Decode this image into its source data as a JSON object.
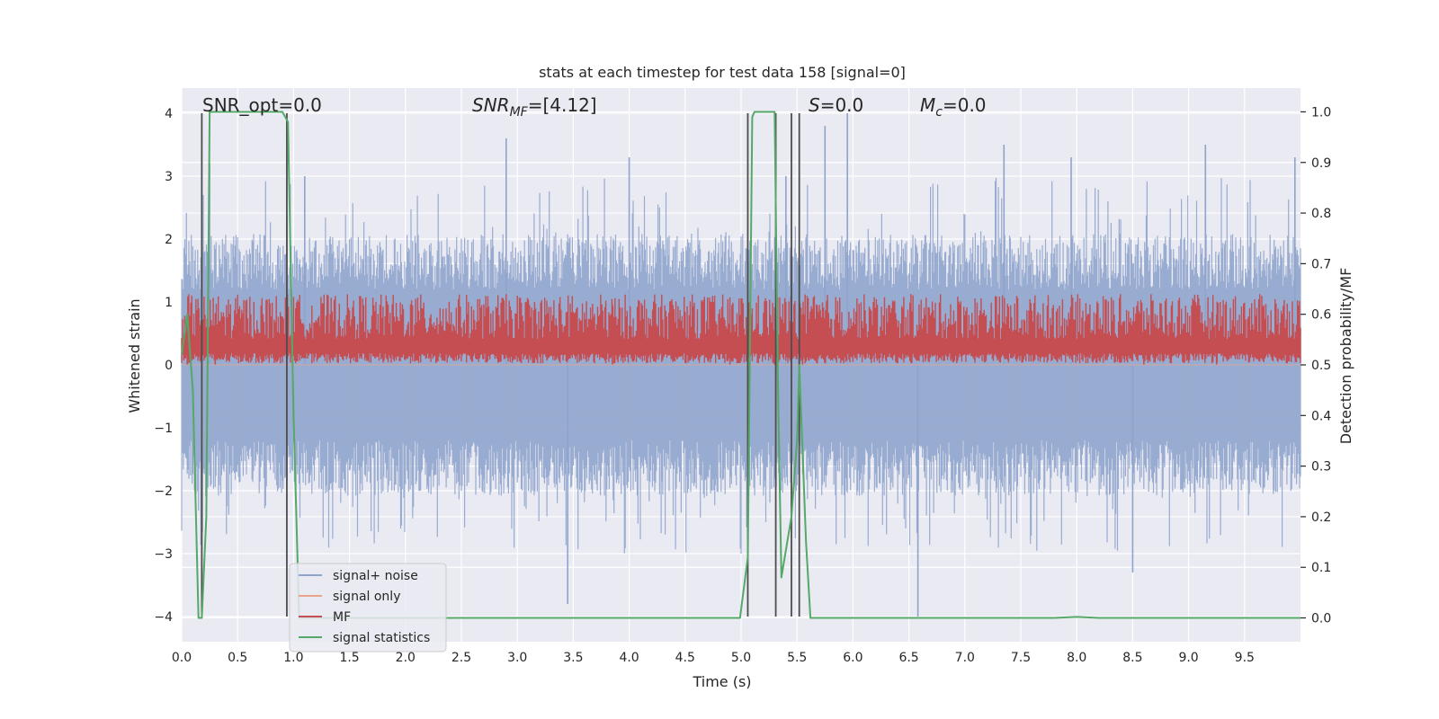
{
  "chart_data": {
    "type": "line",
    "title": "stats at each timestep for test data 158 [signal=0]",
    "xlabel": "Time (s)",
    "ylabel": "Whitened strain",
    "y2label": "Detection probability/MF",
    "xlim": [
      0.0,
      10.0
    ],
    "ylim": [
      -4.4,
      4.4
    ],
    "y2lim": [
      -0.047,
      1.047
    ],
    "x_ticks": [
      0.0,
      0.5,
      1.0,
      1.5,
      2.0,
      2.5,
      3.0,
      3.5,
      4.0,
      4.5,
      5.0,
      5.5,
      6.0,
      6.5,
      7.0,
      7.5,
      8.0,
      8.5,
      9.0,
      9.5
    ],
    "x_tick_labels": [
      "0.0",
      "0.5",
      "1.0",
      "1.5",
      "2.0",
      "2.5",
      "3.0",
      "3.5",
      "4.0",
      "4.5",
      "5.0",
      "5.5",
      "6.0",
      "6.5",
      "7.0",
      "7.5",
      "8.0",
      "8.5",
      "9.0",
      "9.5"
    ],
    "y_ticks": [
      -4,
      -3,
      -2,
      -1,
      0,
      1,
      2,
      3,
      4
    ],
    "y_tick_labels": [
      "−4",
      "−3",
      "−2",
      "−1",
      "0",
      "1",
      "2",
      "3",
      "4"
    ],
    "y2_ticks": [
      0.0,
      0.1,
      0.2,
      0.3,
      0.4,
      0.5,
      0.6,
      0.7,
      0.8,
      0.9,
      1.0
    ],
    "y2_tick_labels": [
      "0.0",
      "0.1",
      "0.2",
      "0.3",
      "0.4",
      "0.5",
      "0.6",
      "0.7",
      "0.8",
      "0.9",
      "1.0"
    ],
    "grid": true,
    "legend_position": "lower-left",
    "legend": [
      {
        "label": "signal+ noise",
        "color": "#8fa4cc"
      },
      {
        "label": "signal only",
        "color": "#e8a58a"
      },
      {
        "label": "MF",
        "color": "#c44e52"
      },
      {
        "label": "signal statistics",
        "color": "#55a868"
      }
    ],
    "annotations": {
      "snr_opt": "SNR_opt=0.0",
      "snr_mf_prefix": "SNR",
      "snr_mf_sub": "MF",
      "snr_mf_value": "=[4.12]",
      "s_prefix": "S",
      "s_value": "=0.0",
      "mc_prefix": "M",
      "mc_sub": "c",
      "mc_value": "=0.0"
    },
    "series": [
      {
        "name": "signal+ noise",
        "axis": "left",
        "style": "noise-band",
        "color": "#8fa4cc",
        "typical_abs_max": 1.6,
        "peak_x": [
          0.25,
          1.1,
          2.9,
          3.45,
          4.0,
          5.4,
          5.75,
          5.95,
          6.58,
          7.35,
          7.95,
          8.5,
          9.15,
          9.95
        ],
        "peak_y": [
          3.2,
          3.0,
          3.6,
          -3.8,
          3.3,
          3.0,
          3.8,
          4.0,
          -4.0,
          3.5,
          3.3,
          -3.3,
          3.5,
          3.3
        ]
      },
      {
        "name": "signal only",
        "axis": "left",
        "color": "#e8a58a",
        "x": [
          0.0,
          10.0
        ],
        "y": [
          0.0,
          0.0
        ]
      },
      {
        "name": "MF",
        "axis": "right",
        "style": "noise-band",
        "color": "#c44e52",
        "baseline": 0.5,
        "band_low": 0.503,
        "band_high": 0.64,
        "peak_x": [
          0.05,
          0.3,
          3.85,
          4.9,
          5.3,
          5.55,
          8.6,
          9.25
        ],
        "peak_y": [
          0.6,
          0.6,
          0.62,
          0.61,
          0.6,
          0.6,
          0.6,
          0.6
        ]
      },
      {
        "name": "signal statistics",
        "axis": "right",
        "color": "#55a868",
        "x": [
          0.0,
          0.05,
          0.1,
          0.15,
          0.18,
          0.22,
          0.25,
          0.3,
          0.5,
          0.9,
          0.95,
          1.0,
          1.05,
          2.0,
          4.99,
          5.06,
          5.1,
          5.12,
          5.3,
          5.33,
          5.36,
          5.45,
          5.5,
          5.52,
          5.58,
          5.62,
          5.7,
          7.0,
          7.8,
          8.0,
          8.2,
          9.5,
          10.0
        ],
        "y": [
          0.52,
          0.6,
          0.45,
          0.0,
          0.0,
          0.2,
          1.0,
          1.0,
          1.0,
          1.0,
          0.98,
          0.4,
          0.0,
          0.0,
          0.0,
          0.12,
          0.99,
          1.0,
          1.0,
          0.45,
          0.08,
          0.2,
          0.35,
          0.5,
          0.15,
          0.0,
          0.0,
          0.0,
          0.0,
          0.002,
          0.0,
          0.0,
          0.0
        ]
      }
    ],
    "vertical_lines": [
      0.18,
      0.94,
      5.06,
      5.31,
      5.45,
      5.52
    ]
  }
}
